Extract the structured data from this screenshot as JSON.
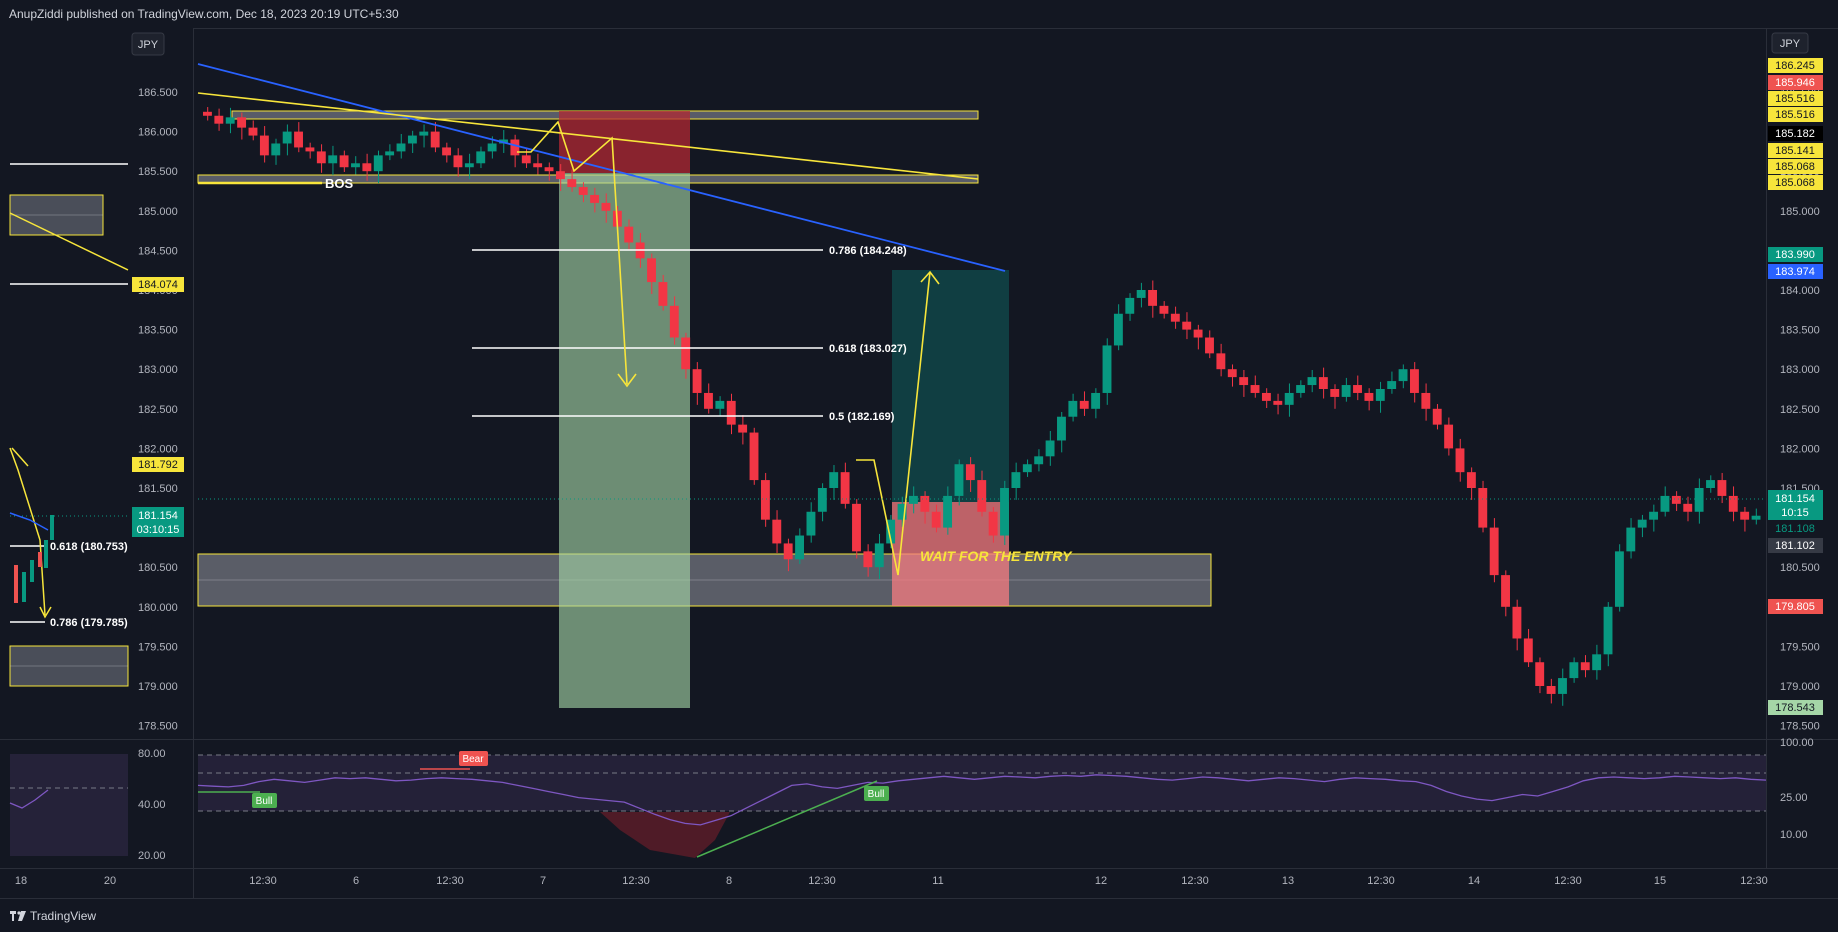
{
  "header": {
    "text": "AnupZiddi published on TradingView.com, Dec 18, 2023 20:19 UTC+5:30"
  },
  "footer": {
    "brand": "TradingView"
  },
  "colors": {
    "background": "#131722",
    "up": "#26a69a",
    "down": "#ef5350",
    "yellow": "#f7e53b",
    "blue": "#2962ff",
    "grid": "#2a2e39"
  },
  "chart_data": [
    {
      "type": "candlestick",
      "panel": "left-mini",
      "currency": "JPY",
      "y_ticks": [
        "186.500",
        "186.000",
        "185.500",
        "185.000",
        "184.500",
        "184.000",
        "183.500",
        "183.000",
        "182.500",
        "182.000",
        "181.500",
        "181.000",
        "180.500",
        "180.000",
        "179.500",
        "179.000",
        "178.500"
      ],
      "x_ticks": [
        "18",
        "20"
      ],
      "price_labels": [
        "184.074",
        "181.792"
      ],
      "last_price": "181.154",
      "countdown": "03:10:15",
      "fib_labels": [
        "0.618 (180.753)",
        "0.786 (179.785)"
      ],
      "rsi_ticks": [
        "80.00",
        "40.00",
        "20.00"
      ]
    },
    {
      "type": "candlestick",
      "panel": "main",
      "currency": "JPY",
      "ylim": [
        178.3,
        186.9
      ],
      "y_ticks": [
        "186.500",
        "186.000",
        "185.500",
        "185.000",
        "184.500",
        "184.000",
        "183.500",
        "183.000",
        "182.500",
        "182.000",
        "181.500",
        "181.000",
        "180.500",
        "180.000",
        "179.500",
        "179.000",
        "178.500"
      ],
      "x_ticks": [
        "12:30",
        "6",
        "12:30",
        "7",
        "12:30",
        "8",
        "12:30",
        "11",
        "12",
        "12:30",
        "13",
        "12:30",
        "14",
        "12:30",
        "15",
        "12:30"
      ],
      "axis_labels_yellow": [
        "186.245",
        "185.516",
        "185.516",
        "185.141",
        "185.068",
        "185.068"
      ],
      "axis_label_red_top": "185.946",
      "axis_label_black": "185.182",
      "axis_label_green_top": "183.990",
      "axis_label_blue": "183.974",
      "last_price": "181.154",
      "countdown": "10:15",
      "axis_label_108": "181.108",
      "axis_label_102": "181.102",
      "axis_label_red_low": "179.805",
      "axis_label_lightgreen": "178.543",
      "fib_levels": [
        {
          "label": "0.786 (184.248)",
          "price": 184.5
        },
        {
          "label": "0.618 (183.027)",
          "price": 183.27
        },
        {
          "label": "0.5 (182.169)",
          "price": 182.42
        }
      ],
      "annotations": {
        "bos": "BOS",
        "entry": "WAIT FOR THE ENTRY"
      },
      "zones": [
        {
          "kind": "supply",
          "from": 186.2,
          "to": 186.3
        },
        {
          "kind": "supply",
          "from": 185.4,
          "to": 185.5
        },
        {
          "kind": "demand",
          "from": 179.98,
          "to": 180.64
        }
      ],
      "candles_close": [
        186.2,
        186.1,
        186.18,
        186.05,
        185.95,
        185.7,
        185.85,
        186.0,
        185.8,
        185.75,
        185.6,
        185.7,
        185.55,
        185.6,
        185.5,
        185.7,
        185.75,
        185.85,
        185.95,
        186.0,
        185.8,
        185.7,
        185.55,
        185.6,
        185.75,
        185.85,
        185.9,
        185.7,
        185.6,
        185.55,
        185.5,
        185.4,
        185.3,
        185.2,
        185.1,
        185.0,
        184.8,
        184.6,
        184.4,
        184.1,
        183.8,
        183.4,
        183.0,
        182.7,
        182.5,
        182.6,
        182.3,
        182.2,
        181.6,
        181.1,
        180.8,
        180.6,
        180.9,
        181.2,
        181.5,
        181.7,
        181.3,
        180.7,
        180.5,
        180.8,
        181.1,
        181.3,
        181.4,
        181.2,
        181.0,
        181.4,
        181.8,
        181.6,
        181.2,
        180.9,
        181.5,
        181.7,
        181.8,
        181.9,
        182.1,
        182.4,
        182.6,
        182.5,
        182.7,
        183.3,
        183.7,
        183.9,
        184.0,
        183.8,
        183.7,
        183.6,
        183.5,
        183.4,
        183.2,
        183.0,
        182.9,
        182.8,
        182.7,
        182.6,
        182.55,
        182.7,
        182.8,
        182.9,
        182.75,
        182.65,
        182.8,
        182.7,
        182.6,
        182.75,
        182.85,
        183.0,
        182.7,
        182.5,
        182.3,
        182.0,
        181.7,
        181.5,
        181.0,
        180.4,
        180.0,
        179.6,
        179.3,
        179.0,
        178.9,
        179.1,
        179.3,
        179.2,
        179.4,
        180.0,
        180.7,
        181.0,
        181.1,
        181.2,
        181.4,
        181.3,
        181.2,
        181.5,
        181.6,
        181.4,
        181.2,
        181.1,
        181.15
      ]
    },
    {
      "type": "line",
      "panel": "rsi",
      "y_ticks": [
        "100.00",
        "25.00",
        "10.00"
      ],
      "divergence_labels": [
        "Bull",
        "Bear",
        "Bull"
      ]
    }
  ]
}
